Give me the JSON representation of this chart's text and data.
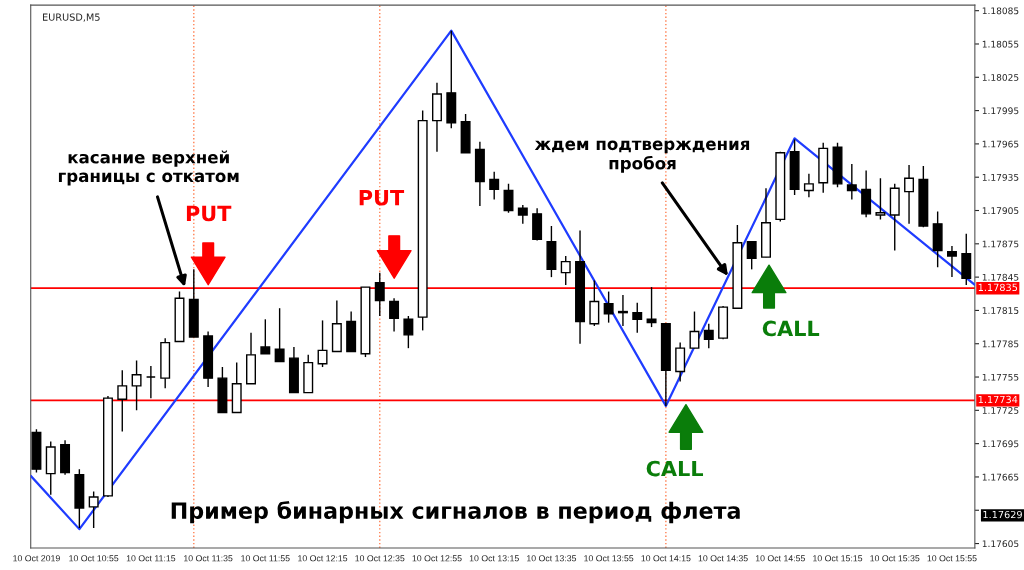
{
  "chart_data": {
    "type": "candlestick",
    "title": "EURUSD,M5",
    "x": [
      "2019-10-10T10:35",
      "2019-10-10T10:40",
      "2019-10-10T10:45",
      "2019-10-10T10:50",
      "2019-10-10T10:55",
      "2019-10-10T11:00",
      "2019-10-10T11:05",
      "2019-10-10T11:10",
      "2019-10-10T11:15",
      "2019-10-10T11:20",
      "2019-10-10T11:25",
      "2019-10-10T11:30",
      "2019-10-10T11:35",
      "2019-10-10T11:40",
      "2019-10-10T11:45",
      "2019-10-10T11:50",
      "2019-10-10T11:55",
      "2019-10-10T12:00",
      "2019-10-10T12:05",
      "2019-10-10T12:10",
      "2019-10-10T12:15",
      "2019-10-10T12:20",
      "2019-10-10T12:25",
      "2019-10-10T12:30",
      "2019-10-10T12:35",
      "2019-10-10T12:40",
      "2019-10-10T12:45",
      "2019-10-10T12:50",
      "2019-10-10T12:55",
      "2019-10-10T13:00",
      "2019-10-10T13:05",
      "2019-10-10T13:10",
      "2019-10-10T13:15",
      "2019-10-10T13:20",
      "2019-10-10T13:25",
      "2019-10-10T13:30",
      "2019-10-10T13:35",
      "2019-10-10T13:40",
      "2019-10-10T13:45",
      "2019-10-10T13:50",
      "2019-10-10T13:55",
      "2019-10-10T14:00",
      "2019-10-10T14:05",
      "2019-10-10T14:10",
      "2019-10-10T14:15",
      "2019-10-10T14:20",
      "2019-10-10T14:25",
      "2019-10-10T14:30",
      "2019-10-10T14:35",
      "2019-10-10T14:40",
      "2019-10-10T14:45",
      "2019-10-10T14:50",
      "2019-10-10T14:55",
      "2019-10-10T15:00",
      "2019-10-10T15:05",
      "2019-10-10T15:10",
      "2019-10-10T15:15",
      "2019-10-10T15:20",
      "2019-10-10T15:25",
      "2019-10-10T15:30",
      "2019-10-10T15:35",
      "2019-10-10T15:40",
      "2019-10-10T15:45",
      "2019-10-10T15:50",
      "2019-10-10T15:55",
      "2019-10-10T16:00"
    ],
    "ohlc": [
      [
        1.17705,
        1.17708,
        1.17669,
        1.17672
      ],
      [
        1.17668,
        1.17697,
        1.17649,
        1.17692
      ],
      [
        1.17694,
        1.17698,
        1.17667,
        1.17669
      ],
      [
        1.17667,
        1.17672,
        1.17619,
        1.17637
      ],
      [
        1.17638,
        1.17652,
        1.17619,
        1.17647
      ],
      [
        1.17648,
        1.17738,
        1.17647,
        1.17736
      ],
      [
        1.17735,
        1.17761,
        1.17706,
        1.17747
      ],
      [
        1.17747,
        1.1777,
        1.17725,
        1.17757
      ],
      [
        1.17755,
        1.17765,
        1.17736,
        1.17755
      ],
      [
        1.17754,
        1.1779,
        1.17745,
        1.17786
      ],
      [
        1.17787,
        1.17832,
        1.17787,
        1.17826
      ],
      [
        1.17825,
        1.17852,
        1.17791,
        1.17791
      ],
      [
        1.17792,
        1.17796,
        1.17746,
        1.17754
      ],
      [
        1.17754,
        1.17764,
        1.17723,
        1.17723
      ],
      [
        1.17723,
        1.17768,
        1.17723,
        1.17749
      ],
      [
        1.17749,
        1.17795,
        1.17749,
        1.17775
      ],
      [
        1.17782,
        1.17807,
        1.17776,
        1.17776
      ],
      [
        1.1778,
        1.17817,
        1.17769,
        1.17769
      ],
      [
        1.17772,
        1.17782,
        1.17741,
        1.17741
      ],
      [
        1.17741,
        1.17775,
        1.17741,
        1.17768
      ],
      [
        1.17767,
        1.17806,
        1.17764,
        1.17779
      ],
      [
        1.17778,
        1.17824,
        1.17778,
        1.17803
      ],
      [
        1.17805,
        1.17814,
        1.17778,
        1.17778
      ],
      [
        1.17776,
        1.17836,
        1.17773,
        1.17836
      ],
      [
        1.1784,
        1.17849,
        1.1781,
        1.17824
      ],
      [
        1.17823,
        1.17826,
        1.17796,
        1.17808
      ],
      [
        1.17807,
        1.1781,
        1.17781,
        1.17793
      ],
      [
        1.17809,
        1.17995,
        1.17797,
        1.17986
      ],
      [
        1.17986,
        1.1802,
        1.17958,
        1.1801
      ],
      [
        1.18011,
        1.18067,
        1.17979,
        1.17984
      ],
      [
        1.17985,
        1.17992,
        1.17957,
        1.17957
      ],
      [
        1.1796,
        1.17967,
        1.17909,
        1.17931
      ],
      [
        1.17933,
        1.1794,
        1.17915,
        1.17924
      ],
      [
        1.17923,
        1.17929,
        1.17903,
        1.17905
      ],
      [
        1.17907,
        1.1791,
        1.17893,
        1.17901
      ],
      [
        1.17902,
        1.17907,
        1.17878,
        1.17879
      ],
      [
        1.17877,
        1.17891,
        1.17845,
        1.17852
      ],
      [
        1.17849,
        1.17864,
        1.17838,
        1.17859
      ],
      [
        1.17859,
        1.17887,
        1.17785,
        1.17805
      ],
      [
        1.17803,
        1.17842,
        1.17801,
        1.17823
      ],
      [
        1.17821,
        1.17832,
        1.17804,
        1.17812
      ],
      [
        1.17814,
        1.17829,
        1.17801,
        1.17813
      ],
      [
        1.17813,
        1.17822,
        1.17795,
        1.17807
      ],
      [
        1.17807,
        1.17836,
        1.178,
        1.17804
      ],
      [
        1.17803,
        1.17803,
        1.17729,
        1.17761
      ],
      [
        1.1776,
        1.17786,
        1.17751,
        1.17781
      ],
      [
        1.17781,
        1.17814,
        1.17781,
        1.17796
      ],
      [
        1.17797,
        1.17803,
        1.17781,
        1.17789
      ],
      [
        1.1779,
        1.17819,
        1.17789,
        1.17818
      ],
      [
        1.17817,
        1.17892,
        1.17817,
        1.17876
      ],
      [
        1.17877,
        1.17877,
        1.17852,
        1.17862
      ],
      [
        1.17863,
        1.17925,
        1.17863,
        1.17894
      ],
      [
        1.17897,
        1.17958,
        1.17895,
        1.17957
      ],
      [
        1.17958,
        1.17969,
        1.17919,
        1.17924
      ],
      [
        1.17923,
        1.17938,
        1.17917,
        1.17929
      ],
      [
        1.1793,
        1.17966,
        1.17921,
        1.17961
      ],
      [
        1.17962,
        1.17966,
        1.17926,
        1.17929
      ],
      [
        1.17928,
        1.17947,
        1.17915,
        1.17923
      ],
      [
        1.17924,
        1.17941,
        1.17899,
        1.17902
      ],
      [
        1.17901,
        1.17934,
        1.17897,
        1.17903
      ],
      [
        1.17901,
        1.17929,
        1.17869,
        1.17925
      ],
      [
        1.17922,
        1.17946,
        1.17893,
        1.17934
      ],
      [
        1.17933,
        1.17945,
        1.1789,
        1.17891
      ],
      [
        1.17893,
        1.17904,
        1.17854,
        1.17869
      ],
      [
        1.17868,
        1.17873,
        1.17845,
        1.17864
      ],
      [
        1.17866,
        1.17884,
        1.17838,
        1.17844
      ]
    ],
    "series": [
      {
        "type": "line",
        "color": "#1f3cff",
        "x": [
          "2019-10-10T10:33",
          "2019-10-10T10:50",
          "2019-10-10T13:00",
          "2019-10-10T14:15",
          "2019-10-10T15:00",
          "2019-10-10T16:03"
        ],
        "values": [
          1.17666,
          1.17618,
          1.18067,
          1.17729,
          1.1797,
          1.17838
        ]
      }
    ],
    "xlim": [
      "2019-10-10T10:33",
      "2019-10-10T16:03"
    ],
    "xticks": [
      {
        "value": "2019-10-10T10:35",
        "label": "10 Oct 2019"
      },
      {
        "value": "2019-10-10T10:55",
        "label": "10 Oct 10:55"
      },
      {
        "value": "2019-10-10T11:15",
        "label": "10 Oct 11:15"
      },
      {
        "value": "2019-10-10T11:35",
        "label": "10 Oct 11:35"
      },
      {
        "value": "2019-10-10T11:55",
        "label": "10 Oct 11:55"
      },
      {
        "value": "2019-10-10T12:15",
        "label": "10 Oct 12:15"
      },
      {
        "value": "2019-10-10T12:35",
        "label": "10 Oct 12:35"
      },
      {
        "value": "2019-10-10T12:55",
        "label": "10 Oct 12:55"
      },
      {
        "value": "2019-10-10T13:15",
        "label": "10 Oct 13:15"
      },
      {
        "value": "2019-10-10T13:35",
        "label": "10 Oct 13:35"
      },
      {
        "value": "2019-10-10T13:55",
        "label": "10 Oct 13:55"
      },
      {
        "value": "2019-10-10T14:15",
        "label": "10 Oct 14:15"
      },
      {
        "value": "2019-10-10T14:35",
        "label": "10 Oct 14:35"
      },
      {
        "value": "2019-10-10T14:55",
        "label": "10 Oct 14:55"
      },
      {
        "value": "2019-10-10T15:15",
        "label": "10 Oct 15:15"
      },
      {
        "value": "2019-10-10T15:35",
        "label": "10 Oct 15:35"
      },
      {
        "value": "2019-10-10T15:55",
        "label": "10 Oct 15:55"
      }
    ],
    "ylim": [
      1.17601,
      1.1809
    ],
    "yticks": [
      1.17605,
      {
        "value": 1.17635,
        "label": null
      },
      1.17665,
      1.17695,
      1.17725,
      1.17755,
      1.17785,
      1.17815,
      1.17845,
      1.17875,
      1.17905,
      1.17935,
      1.17965,
      1.17995,
      1.18025,
      1.18055,
      1.18085
    ],
    "ref_lines": [
      {
        "axis": "y",
        "value": 1.17835,
        "label": "1.17835",
        "color": "#ff0000",
        "line_style": "solid"
      },
      {
        "axis": "y",
        "value": 1.17734,
        "label": "1.17734",
        "color": "#ff0000",
        "line_style": "solid"
      },
      {
        "axis": "x",
        "value": "2019-10-10T11:30",
        "label": null,
        "color": "#ff7f50",
        "line_style": "dotted"
      },
      {
        "axis": "x",
        "value": "2019-10-10T12:35",
        "label": null,
        "color": "#ff7f50",
        "line_style": "dotted"
      },
      {
        "axis": "x",
        "value": "2019-10-10T14:15",
        "label": null,
        "color": "#ff7f50",
        "line_style": "dotted"
      }
    ],
    "annotations": [
      {
        "text": "касание верхней\nграницы с откатом",
        "x": "2019-10-10T11:27",
        "y": 1.17835
      },
      "PUT",
      "PUT",
      {
        "text": "ждем подтверждения\nпробоя",
        "x": "2019-10-10T14:37",
        "y": 1.17845
      },
      "CALL",
      "CALL",
      "Пример бинарных сигналов в период флета",
      "1.17629"
    ],
    "grid": false,
    "legend": false
  }
}
